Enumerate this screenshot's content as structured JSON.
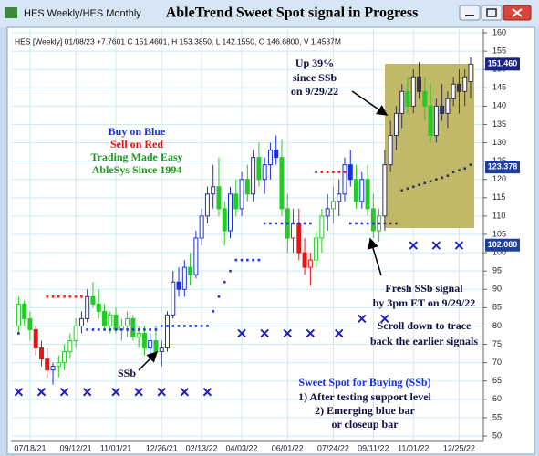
{
  "chart_data": {
    "type": "candlestick",
    "window_title": "HES Weekly/HES Monthly",
    "title": "AbleTrend Sweet Spot signal in Progress",
    "info": "HES [Weekly] 01/08/23 +7.7601 C 151.4601, H 153.3850, L 142.1550, O 146.6800, V 1.4537M",
    "annotations": [
      "Buy on Blue",
      "Sell on Red",
      "Trading Made Easy",
      "AbleSys Since 1994",
      "Up 39%",
      "since SSb",
      "on 9/29/22",
      "Fresh SSb signal",
      "by 3pm ET on 9/29/22",
      "Scroll down to trace",
      "back the earlier signals",
      "SSb",
      "Sweet Spot for Buying (SSb)",
      "1) After testing support level",
      "2) Emerging blue bar",
      "or closeup bar"
    ],
    "categories": [
      null,
      null,
      "07/18/21",
      null,
      null,
      null,
      null,
      null,
      null,
      null,
      "09/12/21",
      null,
      null,
      null,
      null,
      null,
      null,
      "11/01/21",
      null,
      null,
      null,
      null,
      null,
      null,
      null,
      "12/26/21",
      null,
      null,
      null,
      null,
      null,
      null,
      "02/13/22",
      null,
      null,
      null,
      null,
      null,
      null,
      "04/03/22",
      null,
      null,
      null,
      null,
      null,
      null,
      null,
      "06/01/22",
      null,
      null,
      null,
      null,
      null,
      null,
      null,
      "07/24/22",
      null,
      null,
      null,
      null,
      null,
      null,
      "09/11/22",
      null,
      null,
      null,
      null,
      null,
      null,
      "11/01/22",
      null,
      null,
      null,
      null,
      null,
      null,
      null,
      "12/25/22",
      null,
      null
    ],
    "open": [
      80,
      86,
      82,
      79,
      74,
      71,
      68,
      69,
      70,
      73,
      76,
      80,
      82,
      88,
      86,
      84,
      80,
      83,
      79,
      80,
      82,
      77,
      78,
      74,
      76,
      73,
      74,
      83,
      92,
      90,
      96,
      94,
      104,
      110,
      116,
      118,
      112,
      106,
      116,
      112,
      120,
      116,
      126,
      120,
      124,
      128,
      126,
      112,
      104,
      108,
      100,
      96,
      98,
      104,
      110,
      112,
      114,
      116,
      124,
      120,
      114,
      120,
      112,
      106,
      110,
      124,
      132,
      138,
      144,
      140,
      148,
      144,
      140,
      132,
      140,
      138,
      142,
      146,
      144,
      146.68
    ],
    "high": [
      88,
      87,
      84,
      80,
      76,
      74,
      70,
      72,
      75,
      78,
      82,
      84,
      90,
      92,
      90,
      86,
      84,
      85,
      82,
      84,
      83,
      80,
      80,
      78,
      80,
      76,
      84,
      95,
      96,
      98,
      100,
      106,
      112,
      118,
      124,
      126,
      114,
      118,
      120,
      122,
      124,
      128,
      130,
      126,
      130,
      132,
      131,
      116,
      112,
      112,
      104,
      100,
      106,
      112,
      116,
      118,
      120,
      126,
      128,
      124,
      122,
      124,
      116,
      112,
      128,
      136,
      140,
      146,
      148,
      150,
      152,
      148,
      146,
      142,
      146,
      144,
      148,
      150,
      150,
      153.385
    ],
    "low": [
      78,
      80,
      76,
      72,
      69,
      66,
      64,
      66,
      68,
      71,
      74,
      78,
      81,
      85,
      82,
      79,
      78,
      78,
      76,
      77,
      76,
      74,
      72,
      71,
      72,
      69,
      73,
      82,
      88,
      88,
      91,
      93,
      102,
      108,
      112,
      110,
      102,
      104,
      110,
      110,
      114,
      114,
      118,
      116,
      120,
      124,
      110,
      100,
      100,
      98,
      94,
      91,
      96,
      100,
      106,
      108,
      110,
      114,
      118,
      112,
      112,
      110,
      104,
      103,
      106,
      122,
      128,
      134,
      138,
      138,
      142,
      136,
      130,
      130,
      136,
      134,
      140,
      138,
      140,
      142.155
    ],
    "close": [
      86,
      82,
      79,
      74,
      71,
      68,
      69,
      70,
      73,
      76,
      80,
      82,
      88,
      86,
      84,
      80,
      83,
      79,
      80,
      82,
      77,
      78,
      74,
      76,
      73,
      74,
      83,
      92,
      90,
      96,
      94,
      104,
      110,
      116,
      118,
      112,
      106,
      116,
      112,
      120,
      116,
      126,
      120,
      124,
      128,
      126,
      112,
      104,
      108,
      100,
      96,
      98,
      104,
      110,
      112,
      114,
      116,
      124,
      120,
      114,
      120,
      112,
      106,
      110,
      124,
      132,
      138,
      144,
      140,
      148,
      144,
      140,
      132,
      140,
      138,
      142,
      146,
      144,
      148,
      151.4601
    ],
    "colors": [
      "#22cc22",
      "#22cc22",
      "#22cc22",
      "#ee1111",
      "#ee1111",
      "#ee1111",
      "#1a2ee0",
      "#22cc22",
      "#22cc22",
      "#22cc22",
      "#22cc22",
      "#1a2ee0",
      "#1a2ee0",
      "#22cc22",
      "#22cc22",
      "#22cc22",
      "#22cc22",
      "#22cc22",
      "#22cc22",
      "#22cc22",
      "#22cc22",
      "#22cc22",
      "#22cc22",
      "#1a2ee0",
      "#22cc22",
      "#1a2ee0",
      "#1a2ee0",
      "#1a2ee0",
      "#1a2ee0",
      "#1a2ee0",
      "#22cc22",
      "#1a2ee0",
      "#1a2ee0",
      "#1a2ee0",
      "#1a2ee0",
      "#22cc22",
      "#22cc22",
      "#1a2ee0",
      "#22cc22",
      "#1a2ee0",
      "#22cc22",
      "#1a2ee0",
      "#22cc22",
      "#1a2ee0",
      "#1a2ee0",
      "#1a2ee0",
      "#22cc22",
      "#22cc22",
      "#ee1111",
      "#ee1111",
      "#ee1111",
      "#ee1111",
      "#22cc22",
      "#22cc22",
      "#1a2ee0",
      "#22cc22",
      "#1a2ee0",
      "#1a2ee0",
      "#1a2ee0",
      "#22cc22",
      "#1a2ee0",
      "#22cc22",
      "#22cc22",
      "#22cc22",
      "#333355",
      "#333355",
      "#333355",
      "#333355",
      "#22cc22",
      "#333355",
      "#333355",
      "#22cc22",
      "#22cc22",
      "#333355",
      "#333355",
      "#333355",
      "#333355",
      "#333355",
      "#333355",
      "#333355"
    ],
    "overlays": [
      {
        "marker": "dot",
        "values": [
          78,
          null,
          null,
          null,
          null,
          88,
          88,
          88,
          88,
          88,
          88,
          88,
          79,
          79,
          79,
          79,
          79,
          79,
          79,
          79,
          79,
          79,
          79,
          79,
          79,
          80,
          80,
          80,
          80,
          80,
          80,
          80,
          80,
          80,
          84,
          88,
          92,
          95,
          98,
          98,
          98,
          98,
          98,
          108,
          108,
          108,
          108,
          108,
          108,
          108,
          108,
          108,
          122,
          122,
          122,
          122,
          122,
          122,
          108,
          108,
          108,
          108,
          108,
          108,
          108,
          108,
          108,
          117,
          117.5,
          118,
          118.5,
          119,
          119.5,
          120,
          120.5,
          121,
          122,
          122.5,
          123,
          124
        ],
        "colors": [
          "#2233dd",
          null,
          null,
          null,
          null,
          "#ee2222",
          "#ee2222",
          "#ee2222",
          "#ee2222",
          "#ee2222",
          "#ee2222",
          "#ee2222",
          "#2233dd",
          "#2233dd",
          "#2233dd",
          "#2233dd",
          "#2233dd",
          "#2233dd",
          "#2233dd",
          "#2233dd",
          "#2233dd",
          "#2233dd",
          "#2233dd",
          "#2233dd",
          "#2233dd",
          "#2233dd",
          "#2233dd",
          "#2233dd",
          "#2233dd",
          "#2233dd",
          "#2233dd",
          "#2233dd",
          "#2233dd",
          "#2233dd",
          "#2233dd",
          "#2233dd",
          "#2233dd",
          "#2233dd",
          "#2233dd",
          "#2233dd",
          "#2233dd",
          "#2233dd",
          "#2233dd",
          "#2233dd",
          "#2233dd",
          "#2233dd",
          "#2233dd",
          "#2233dd",
          "#2233dd",
          "#2233dd",
          "#2233dd",
          "#2233dd",
          "#ee2222",
          "#ee2222",
          "#ee2222",
          "#ee2222",
          "#ee2222",
          "#ee2222",
          "#2233dd",
          "#2233dd",
          "#2233dd",
          "#2233dd",
          "#2233dd",
          "#333355",
          "#333355",
          "#333355",
          "#333355",
          "#333355",
          "#333355",
          "#333355",
          "#333355",
          "#333355",
          "#333355",
          "#333355",
          "#333355",
          "#333355",
          "#333355",
          "#333355",
          "#333355",
          "#333355"
        ]
      },
      {
        "marker": "x",
        "color": "#2222bb",
        "values": [
          62,
          null,
          null,
          null,
          62,
          null,
          null,
          null,
          62,
          null,
          null,
          null,
          62,
          null,
          null,
          null,
          null,
          62,
          null,
          null,
          null,
          62,
          null,
          null,
          null,
          62,
          null,
          null,
          null,
          62,
          null,
          null,
          null,
          62,
          null,
          null,
          null,
          null,
          null,
          78,
          null,
          null,
          null,
          78,
          null,
          null,
          null,
          78,
          null,
          null,
          null,
          78,
          null,
          null,
          null,
          null,
          78,
          null,
          null,
          null,
          82,
          null,
          null,
          null,
          82,
          null,
          null,
          null,
          null,
          102,
          null,
          null,
          null,
          102,
          null,
          null,
          null,
          102,
          null,
          null
        ]
      }
    ],
    "price_tags": [
      {
        "value": 151.46,
        "label": "151.460",
        "color": "#1a237e"
      },
      {
        "value": 123.378,
        "label": "123.378",
        "color": "#1f3fa0"
      },
      {
        "value": 102.08,
        "label": "102.080",
        "color": "#1f3fa0"
      }
    ],
    "ylim": [
      48.5,
      161
    ],
    "yticks": [
      50,
      55,
      60,
      65,
      70,
      75,
      80,
      85,
      90,
      95,
      100,
      105,
      110,
      115,
      120,
      125,
      130,
      135,
      140,
      145,
      150,
      155,
      160
    ],
    "grid": true
  }
}
